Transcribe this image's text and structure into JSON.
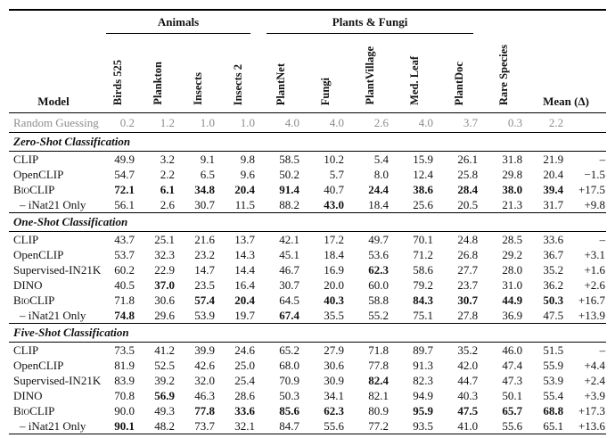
{
  "table": {
    "model_header": "Model",
    "mean_header": "Mean (Δ)",
    "groups": [
      {
        "label": "Animals"
      },
      {
        "label": "Plants & Fungi"
      }
    ],
    "columns": [
      "Birds 525",
      "Plankton",
      "Insects",
      "Insects 2",
      "PlantNet",
      "Fungi",
      "PlantVillage",
      "Med. Leaf",
      "PlantDoc",
      "Rare Species"
    ],
    "random_row": {
      "model": "Random Guessing",
      "smallcaps": false,
      "indent": false,
      "values": [
        "0.2",
        "1.2",
        "1.0",
        "1.0",
        "4.0",
        "4.0",
        "2.6",
        "4.0",
        "3.7",
        "0.3"
      ],
      "bold": [
        0,
        0,
        0,
        0,
        0,
        0,
        0,
        0,
        0,
        0
      ],
      "mean": "2.2",
      "mean_bold": 0,
      "delta": ""
    },
    "sections": [
      {
        "title": "Zero-Shot Classification",
        "rows": [
          {
            "model": "CLIP",
            "smallcaps": false,
            "indent": false,
            "values": [
              "49.9",
              "3.2",
              "9.1",
              "9.8",
              "58.5",
              "10.2",
              "5.4",
              "15.9",
              "26.1",
              "31.8"
            ],
            "bold": [
              0,
              0,
              0,
              0,
              0,
              0,
              0,
              0,
              0,
              0
            ],
            "mean": "21.9",
            "mean_bold": 0,
            "delta": "–"
          },
          {
            "model": "OpenCLIP",
            "smallcaps": false,
            "indent": false,
            "values": [
              "54.7",
              "2.2",
              "6.5",
              "9.6",
              "50.2",
              "5.7",
              "8.0",
              "12.4",
              "25.8",
              "29.8"
            ],
            "bold": [
              0,
              0,
              0,
              0,
              0,
              0,
              0,
              0,
              0,
              0
            ],
            "mean": "20.4",
            "mean_bold": 0,
            "delta": "−1.5"
          },
          {
            "model": "BioCLIP",
            "smallcaps": true,
            "indent": false,
            "values": [
              "72.1",
              "6.1",
              "34.8",
              "20.4",
              "91.4",
              "40.7",
              "24.4",
              "38.6",
              "28.4",
              "38.0"
            ],
            "bold": [
              1,
              1,
              1,
              1,
              1,
              0,
              1,
              1,
              1,
              1
            ],
            "mean": "39.4",
            "mean_bold": 1,
            "delta": "+17.5"
          },
          {
            "model": "– iNat21 Only",
            "smallcaps": false,
            "indent": true,
            "values": [
              "56.1",
              "2.6",
              "30.7",
              "11.5",
              "88.2",
              "43.0",
              "18.4",
              "25.6",
              "20.5",
              "21.3"
            ],
            "bold": [
              0,
              0,
              0,
              0,
              0,
              1,
              0,
              0,
              0,
              0
            ],
            "mean": "31.7",
            "mean_bold": 0,
            "delta": "+9.8"
          }
        ]
      },
      {
        "title": "One-Shot Classification",
        "rows": [
          {
            "model": "CLIP",
            "smallcaps": false,
            "indent": false,
            "values": [
              "43.7",
              "25.1",
              "21.6",
              "13.7",
              "42.1",
              "17.2",
              "49.7",
              "70.1",
              "24.8",
              "28.5"
            ],
            "bold": [
              0,
              0,
              0,
              0,
              0,
              0,
              0,
              0,
              0,
              0
            ],
            "mean": "33.6",
            "mean_bold": 0,
            "delta": "–"
          },
          {
            "model": "OpenCLIP",
            "smallcaps": false,
            "indent": false,
            "values": [
              "53.7",
              "32.3",
              "23.2",
              "14.3",
              "45.1",
              "18.4",
              "53.6",
              "71.2",
              "26.8",
              "29.2"
            ],
            "bold": [
              0,
              0,
              0,
              0,
              0,
              0,
              0,
              0,
              0,
              0
            ],
            "mean": "36.7",
            "mean_bold": 0,
            "delta": "+3.1"
          },
          {
            "model": "Supervised-IN21K",
            "smallcaps": false,
            "indent": false,
            "values": [
              "60.2",
              "22.9",
              "14.7",
              "14.4",
              "46.7",
              "16.9",
              "62.3",
              "58.6",
              "27.7",
              "28.0"
            ],
            "bold": [
              0,
              0,
              0,
              0,
              0,
              0,
              1,
              0,
              0,
              0
            ],
            "mean": "35.2",
            "mean_bold": 0,
            "delta": "+1.6"
          },
          {
            "model": "DINO",
            "smallcaps": false,
            "indent": false,
            "values": [
              "40.5",
              "37.0",
              "23.5",
              "16.4",
              "30.7",
              "20.0",
              "60.0",
              "79.2",
              "23.7",
              "31.0"
            ],
            "bold": [
              0,
              1,
              0,
              0,
              0,
              0,
              0,
              0,
              0,
              0
            ],
            "mean": "36.2",
            "mean_bold": 0,
            "delta": "+2.6"
          },
          {
            "model": "BioCLIP",
            "smallcaps": true,
            "indent": false,
            "values": [
              "71.8",
              "30.6",
              "57.4",
              "20.4",
              "64.5",
              "40.3",
              "58.8",
              "84.3",
              "30.7",
              "44.9"
            ],
            "bold": [
              0,
              0,
              1,
              1,
              0,
              1,
              0,
              1,
              1,
              1
            ],
            "mean": "50.3",
            "mean_bold": 1,
            "delta": "+16.7"
          },
          {
            "model": "– iNat21 Only",
            "smallcaps": false,
            "indent": true,
            "values": [
              "74.8",
              "29.6",
              "53.9",
              "19.7",
              "67.4",
              "35.5",
              "55.2",
              "75.1",
              "27.8",
              "36.9"
            ],
            "bold": [
              1,
              0,
              0,
              0,
              1,
              0,
              0,
              0,
              0,
              0
            ],
            "mean": "47.5",
            "mean_bold": 0,
            "delta": "+13.9"
          }
        ]
      },
      {
        "title": "Five-Shot Classification",
        "rows": [
          {
            "model": "CLIP",
            "smallcaps": false,
            "indent": false,
            "values": [
              "73.5",
              "41.2",
              "39.9",
              "24.6",
              "65.2",
              "27.9",
              "71.8",
              "89.7",
              "35.2",
              "46.0"
            ],
            "bold": [
              0,
              0,
              0,
              0,
              0,
              0,
              0,
              0,
              0,
              0
            ],
            "mean": "51.5",
            "mean_bold": 0,
            "delta": "–"
          },
          {
            "model": "OpenCLIP",
            "smallcaps": false,
            "indent": false,
            "values": [
              "81.9",
              "52.5",
              "42.6",
              "25.0",
              "68.0",
              "30.6",
              "77.8",
              "91.3",
              "42.0",
              "47.4"
            ],
            "bold": [
              0,
              0,
              0,
              0,
              0,
              0,
              0,
              0,
              0,
              0
            ],
            "mean": "55.9",
            "mean_bold": 0,
            "delta": "+4.4"
          },
          {
            "model": "Supervised-IN21K",
            "smallcaps": false,
            "indent": false,
            "values": [
              "83.9",
              "39.2",
              "32.0",
              "25.4",
              "70.9",
              "30.9",
              "82.4",
              "82.3",
              "44.7",
              "47.3"
            ],
            "bold": [
              0,
              0,
              0,
              0,
              0,
              0,
              1,
              0,
              0,
              0
            ],
            "mean": "53.9",
            "mean_bold": 0,
            "delta": "+2.4"
          },
          {
            "model": "DINO",
            "smallcaps": false,
            "indent": false,
            "values": [
              "70.8",
              "56.9",
              "46.3",
              "28.6",
              "50.3",
              "34.1",
              "82.1",
              "94.9",
              "40.3",
              "50.1"
            ],
            "bold": [
              0,
              1,
              0,
              0,
              0,
              0,
              0,
              0,
              0,
              0
            ],
            "mean": "55.4",
            "mean_bold": 0,
            "delta": "+3.9"
          },
          {
            "model": "BioCLIP",
            "smallcaps": true,
            "indent": false,
            "values": [
              "90.0",
              "49.3",
              "77.8",
              "33.6",
              "85.6",
              "62.3",
              "80.9",
              "95.9",
              "47.5",
              "65.7"
            ],
            "bold": [
              0,
              0,
              1,
              1,
              1,
              1,
              0,
              1,
              1,
              1
            ],
            "mean": "68.8",
            "mean_bold": 1,
            "delta": "+17.3"
          },
          {
            "model": "– iNat21 Only",
            "smallcaps": false,
            "indent": true,
            "values": [
              "90.1",
              "48.2",
              "73.7",
              "32.1",
              "84.7",
              "55.6",
              "77.2",
              "93.5",
              "41.0",
              "55.6"
            ],
            "bold": [
              1,
              0,
              0,
              0,
              0,
              0,
              0,
              0,
              0,
              0
            ],
            "mean": "65.1",
            "mean_bold": 0,
            "delta": "+13.6"
          }
        ]
      }
    ],
    "colors": {
      "text": "#111111",
      "muted_row": "#8d8d8d",
      "rule": "#000000"
    }
  }
}
